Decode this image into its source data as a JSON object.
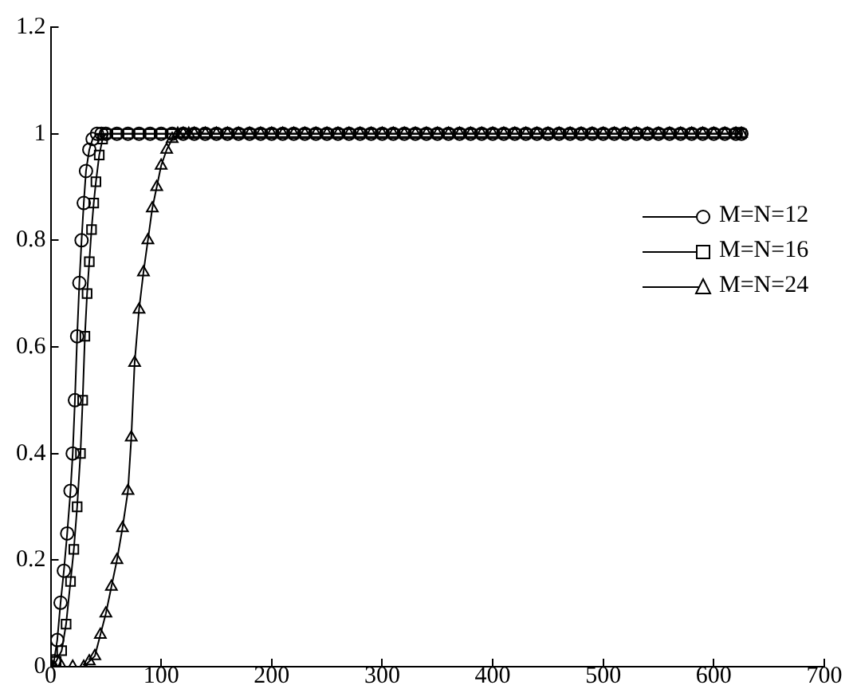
{
  "chart_data": {
    "type": "line",
    "xlim": [
      0,
      700
    ],
    "xticks": [
      0,
      100,
      200,
      300,
      400,
      500,
      600,
      700
    ],
    "ylim": [
      0,
      1.2
    ],
    "yticks": [
      0,
      0.2,
      0.4,
      0.6,
      0.8,
      1,
      1.2
    ],
    "grid": false,
    "legend": "right",
    "series": [
      {
        "name": "M=N=12",
        "color": "#000000",
        "marker": "circle",
        "x": [
          0,
          3,
          6,
          9,
          12,
          15,
          18,
          20,
          22,
          24,
          26,
          28,
          30,
          32,
          35,
          38,
          42,
          46,
          50,
          60,
          70,
          80,
          90,
          100,
          110,
          120,
          130,
          140,
          150,
          160,
          170,
          180,
          190,
          200,
          210,
          220,
          230,
          240,
          250,
          260,
          270,
          280,
          290,
          300,
          310,
          320,
          330,
          340,
          350,
          360,
          370,
          380,
          390,
          400,
          410,
          420,
          430,
          440,
          450,
          460,
          470,
          480,
          490,
          500,
          510,
          520,
          530,
          540,
          550,
          560,
          570,
          580,
          590,
          600,
          610,
          620,
          625
        ],
        "values": [
          0,
          0.01,
          0.05,
          0.12,
          0.18,
          0.25,
          0.33,
          0.4,
          0.5,
          0.62,
          0.72,
          0.8,
          0.87,
          0.93,
          0.97,
          0.99,
          1,
          1,
          1,
          1,
          1,
          1,
          1,
          1,
          1,
          1,
          1,
          1,
          1,
          1,
          1,
          1,
          1,
          1,
          1,
          1,
          1,
          1,
          1,
          1,
          1,
          1,
          1,
          1,
          1,
          1,
          1,
          1,
          1,
          1,
          1,
          1,
          1,
          1,
          1,
          1,
          1,
          1,
          1,
          1,
          1,
          1,
          1,
          1,
          1,
          1,
          1,
          1,
          1,
          1,
          1,
          1,
          1,
          1,
          1,
          1,
          1
        ]
      },
      {
        "name": "M=N=16",
        "color": "#000000",
        "marker": "square",
        "x": [
          0,
          5,
          10,
          14,
          18,
          21,
          24,
          27,
          29,
          31,
          33,
          35,
          37,
          39,
          41,
          44,
          47,
          50,
          60,
          70,
          80,
          90,
          100,
          110,
          120,
          130,
          140,
          150,
          160,
          170,
          180,
          190,
          200,
          210,
          220,
          230,
          240,
          250,
          260,
          270,
          280,
          290,
          300,
          310,
          320,
          330,
          340,
          350,
          360,
          370,
          380,
          390,
          400,
          410,
          420,
          430,
          440,
          450,
          460,
          470,
          480,
          490,
          500,
          510,
          520,
          530,
          540,
          550,
          560,
          570,
          580,
          590,
          600,
          610,
          620,
          625
        ],
        "values": [
          0,
          0.01,
          0.03,
          0.08,
          0.16,
          0.22,
          0.3,
          0.4,
          0.5,
          0.62,
          0.7,
          0.76,
          0.82,
          0.87,
          0.91,
          0.96,
          0.99,
          1,
          1,
          1,
          1,
          1,
          1,
          1,
          1,
          1,
          1,
          1,
          1,
          1,
          1,
          1,
          1,
          1,
          1,
          1,
          1,
          1,
          1,
          1,
          1,
          1,
          1,
          1,
          1,
          1,
          1,
          1,
          1,
          1,
          1,
          1,
          1,
          1,
          1,
          1,
          1,
          1,
          1,
          1,
          1,
          1,
          1,
          1,
          1,
          1,
          1,
          1,
          1,
          1,
          1,
          1,
          1,
          1,
          1,
          1
        ]
      },
      {
        "name": "M=N=24",
        "color": "#000000",
        "marker": "triangle",
        "x": [
          0,
          10,
          20,
          30,
          35,
          40,
          45,
          50,
          55,
          60,
          65,
          70,
          73,
          76,
          80,
          84,
          88,
          92,
          96,
          100,
          105,
          110,
          115,
          120,
          125,
          130,
          140,
          150,
          160,
          170,
          180,
          190,
          200,
          210,
          220,
          230,
          240,
          250,
          260,
          270,
          280,
          290,
          300,
          310,
          320,
          330,
          340,
          350,
          360,
          370,
          380,
          390,
          400,
          410,
          420,
          430,
          440,
          450,
          460,
          470,
          480,
          490,
          500,
          510,
          520,
          530,
          540,
          550,
          560,
          570,
          580,
          590,
          600,
          610,
          620,
          625
        ],
        "values": [
          0,
          0,
          0,
          0,
          0.01,
          0.02,
          0.06,
          0.1,
          0.15,
          0.2,
          0.26,
          0.33,
          0.43,
          0.57,
          0.67,
          0.74,
          0.8,
          0.86,
          0.9,
          0.94,
          0.97,
          0.99,
          1,
          1,
          1,
          1,
          1,
          1,
          1,
          1,
          1,
          1,
          1,
          1,
          1,
          1,
          1,
          1,
          1,
          1,
          1,
          1,
          1,
          1,
          1,
          1,
          1,
          1,
          1,
          1,
          1,
          1,
          1,
          1,
          1,
          1,
          1,
          1,
          1,
          1,
          1,
          1,
          1,
          1,
          1,
          1,
          1,
          1,
          1,
          1,
          1,
          1,
          1,
          1,
          1,
          1
        ]
      }
    ]
  }
}
